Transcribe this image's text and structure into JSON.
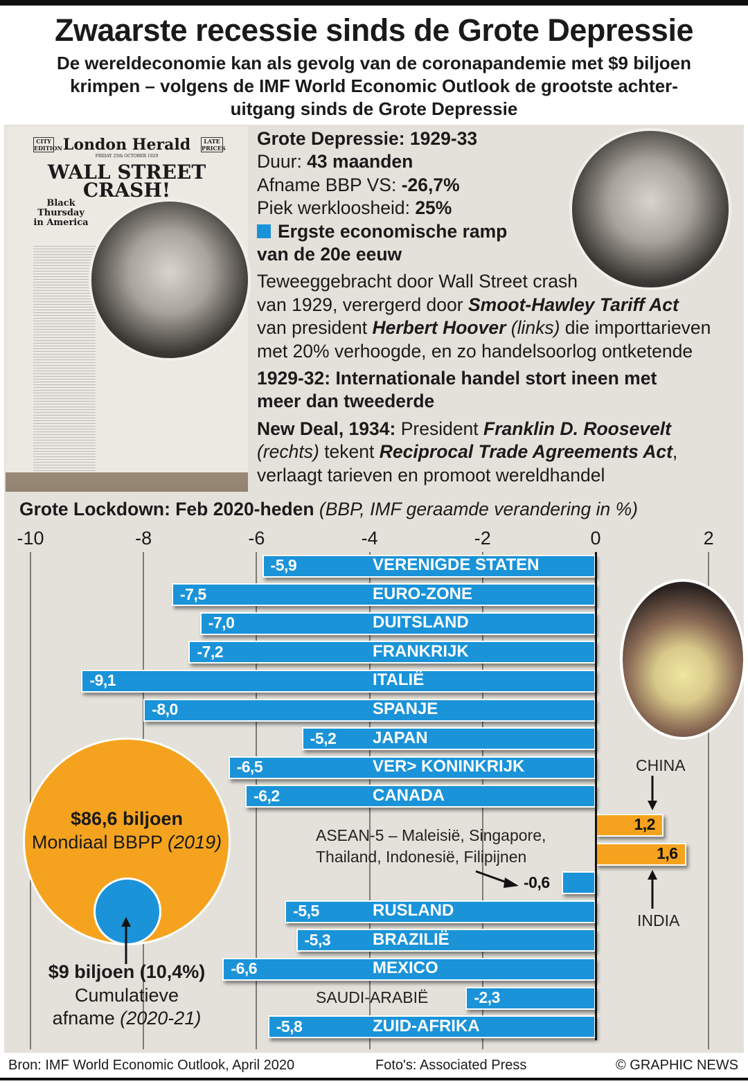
{
  "title": "Zwaarste recessie sinds de Grote Depressie",
  "subtitle_lines": [
    "De wereldeconomie kan als gevolg van de coronapandemie met $9 biljoen",
    "krimpen – volgens de IMF World Economic Outlook de grootste achter-",
    "uitgang sinds de Grote Depressie"
  ],
  "newspaper": {
    "left_box": "CITY EDITION",
    "masthead": "London Herald",
    "right_box": "LATE PRICES",
    "date": "FRIDAY 25th OCTOBER 1929",
    "headline1": "WALL STREET",
    "headline2": "CRASH!",
    "side1": "Black",
    "side2": "Thursday",
    "side3": "in America"
  },
  "info": [
    [
      {
        "t": "Grote Depressie: 1929-33",
        "b": 1
      }
    ],
    [
      {
        "t": "Duur: "
      },
      {
        "t": "43 maanden",
        "b": 1
      }
    ],
    [
      {
        "t": "Afname BBP VS: "
      },
      {
        "t": "-26,7%",
        "b": 1
      }
    ],
    [
      {
        "t": "Piek werkloosheid: "
      },
      {
        "t": "25%",
        "b": 1
      }
    ],
    [
      {
        "sq": 1
      },
      {
        "t": "Ergste economische ramp",
        "b": 1
      },
      {
        "br": 1
      },
      {
        "t": "van de 20e eeuw",
        "b": 1
      }
    ],
    [
      {
        "t": "Teweeggebracht door Wall Street crash"
      },
      {
        "br": 1
      },
      {
        "t": "van 1929, verergerd door "
      },
      {
        "t": "Smoot-Hawley Tariff Act",
        "b": 1,
        "i": 1
      },
      {
        "br": 1
      },
      {
        "t": "van president "
      },
      {
        "t": "Herbert Hoover",
        "b": 1,
        "i": 1
      },
      {
        "t": " (links)",
        "i": 1
      },
      {
        "t": " die importtarieven"
      },
      {
        "br": 1
      },
      {
        "t": "met 20% verhoogde, en zo handelsoorlog ontketende"
      }
    ],
    [
      {
        "t": "1929-32: Internationale handel stort ineen met",
        "b": 1
      },
      {
        "br": 1
      },
      {
        "t": "meer dan tweederde",
        "b": 1
      }
    ],
    [
      {
        "t": "New Deal, 1934:",
        "b": 1
      },
      {
        "t": " President "
      },
      {
        "t": "Franklin D. Roosevelt",
        "b": 1,
        "i": 1
      },
      {
        "br": 1
      },
      {
        "t": "(rechts)",
        "i": 1
      },
      {
        "t": " tekent "
      },
      {
        "t": "Reciprocal Trade Agreements Act",
        "b": 1,
        "i": 1
      },
      {
        "t": ","
      },
      {
        "br": 1
      },
      {
        "t": "verlaagt tarieven en promoot wereldhandel"
      }
    ]
  ],
  "chart_head": {
    "bold": "Grote Lockdown: Feb 2020-heden",
    "italic": " (BBP, IMF geraamde verandering in %)"
  },
  "chart_data": {
    "type": "bar",
    "orientation": "horizontal",
    "title": "Grote Lockdown: Feb 2020-heden",
    "xlabel": "BBP, IMF geraamde verandering in %",
    "xlim": [
      -10,
      2
    ],
    "xticks": [
      -10,
      -8,
      -6,
      -4,
      -2,
      0,
      2
    ],
    "xtick_labels": [
      "-10",
      "-8",
      "-6",
      "-4",
      "-2",
      "0",
      "2"
    ],
    "grid": true,
    "categories": [
      "VERENIGDE STATEN",
      "EURO-ZONE",
      "DUITSLAND",
      "FRANKRIJK",
      "ITALIË",
      "SPANJE",
      "JAPAN",
      "VER> KONINKRIJK",
      "CANADA",
      "CHINA",
      "INDIA",
      "ASEAN-5",
      "RUSLAND",
      "BRAZILIË",
      "MEXICO",
      "SAUDI-ARABIË",
      "ZUID-AFRIKA"
    ],
    "values": [
      -5.9,
      -7.5,
      -7.0,
      -7.2,
      -9.1,
      -8.0,
      -5.2,
      -6.5,
      -6.2,
      1.2,
      1.6,
      -0.6,
      -5.5,
      -5.3,
      -6.6,
      -2.3,
      -5.8
    ],
    "value_labels": [
      "-5,9",
      "-7,5",
      "-7,0",
      "-7,2",
      "-9,1",
      "-8,0",
      "-5,2",
      "-6,5",
      "-6,2",
      "1,2",
      "1,6",
      "-0,6",
      "-5,5",
      "-5,3",
      "-6,6",
      "-2,3",
      "-5,8"
    ],
    "annotations": {
      "china": "CHINA",
      "india": "INDIA",
      "asean1": "ASEAN-5 – Maleisië, Singapore,",
      "asean2": "Thailand, Indonesië, Filipijnen"
    },
    "colors": {
      "negative": "#1a93d9",
      "positive": "#f5a31f"
    }
  },
  "bubble": {
    "big_value": "$86,6 biljoen",
    "big_label": "Mondiaal BBPP",
    "big_year": "(2019)",
    "small_value": "$9 biljoen (10,4%)",
    "small_label1": "Cumulatieve",
    "small_label2": "afname",
    "small_years": "(2020-21)"
  },
  "footer": {
    "source": "Bron: IMF World Economic Outlook, April 2020",
    "photos": "Foto's: Associated Press",
    "credit": "© GRAPHIC NEWS"
  }
}
